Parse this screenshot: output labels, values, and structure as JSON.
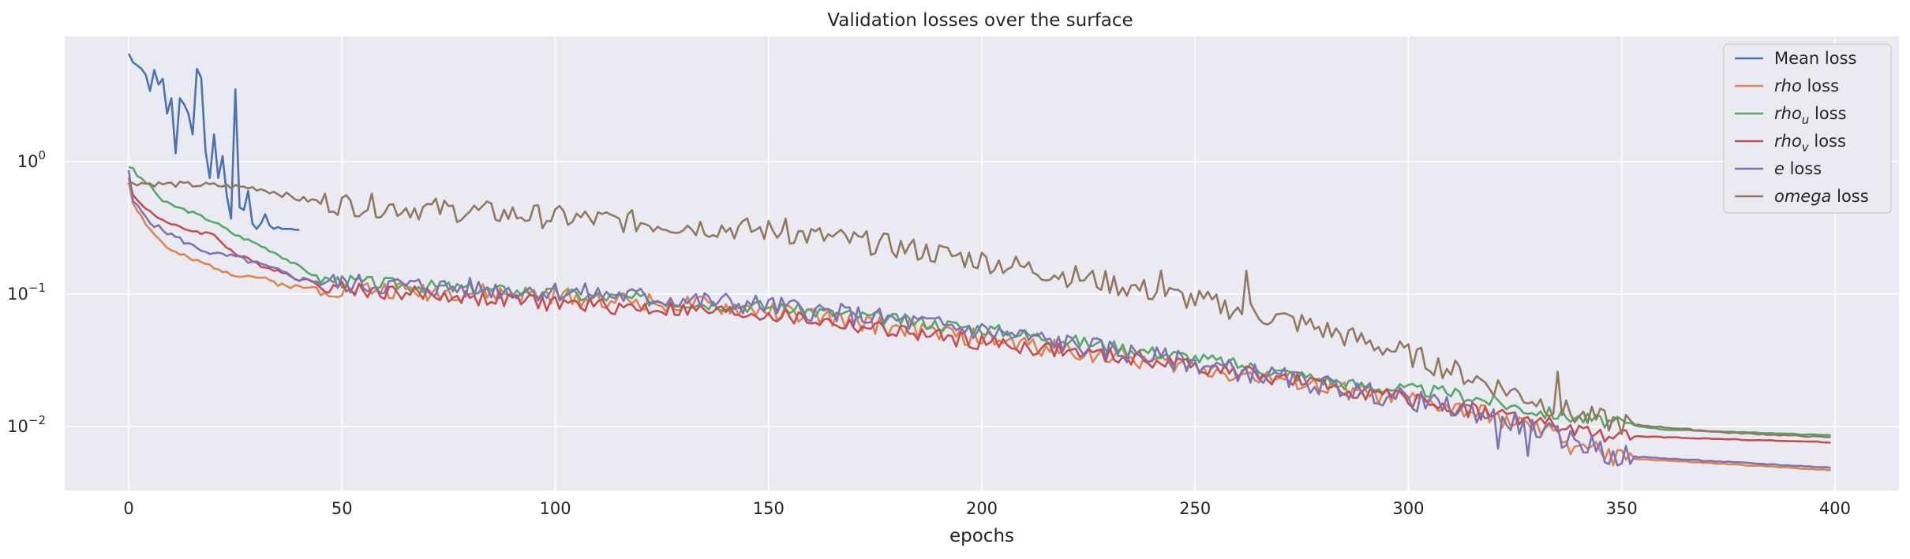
{
  "chart_data": {
    "type": "line",
    "title": "Validation losses over the surface",
    "xlabel": "epochs",
    "ylabel": "",
    "xlim": [
      -15,
      415
    ],
    "ylim": [
      0.0033,
      8.8
    ],
    "yscale": "log",
    "grid": true,
    "legend_position": "top-right",
    "x_ticks": [
      0,
      50,
      100,
      150,
      200,
      250,
      300,
      350,
      400
    ],
    "x_tick_labels": [
      "0",
      "50",
      "100",
      "150",
      "200",
      "250",
      "300",
      "350",
      "400"
    ],
    "y_ticks": [
      {
        "value": 1,
        "base": "10",
        "exp": "0"
      },
      {
        "value": 0.1,
        "base": "10",
        "exp": "−1"
      },
      {
        "value": 0.01,
        "base": "10",
        "exp": "−2"
      }
    ],
    "series": [
      {
        "name": "Mean loss",
        "legend_var": "",
        "legend_sub": "",
        "legend_rest": "Mean loss",
        "color": "#4c72b0",
        "x": [
          0,
          1,
          2,
          3,
          4,
          5,
          6,
          7,
          8,
          9,
          10,
          11,
          12,
          13,
          14,
          15,
          16,
          17,
          18,
          19,
          20,
          21,
          22,
          23,
          24,
          25,
          26,
          27,
          28,
          29,
          30,
          31,
          32,
          33,
          34,
          35,
          36,
          37,
          38,
          39,
          40
        ],
        "y": [
          6.5,
          5.6,
          5.3,
          5.0,
          4.5,
          3.4,
          4.9,
          3.8,
          4.2,
          2.3,
          3.0,
          1.15,
          3.0,
          2.7,
          2.3,
          1.6,
          5.0,
          4.3,
          1.2,
          0.75,
          1.6,
          0.75,
          1.1,
          0.55,
          0.37,
          3.5,
          0.45,
          0.43,
          0.6,
          0.34,
          0.31,
          0.34,
          0.4,
          0.33,
          0.31,
          0.32,
          0.31,
          0.31,
          0.31,
          0.305,
          0.305
        ]
      },
      {
        "name": "rho loss",
        "legend_var": "rho",
        "legend_sub": "",
        "legend_rest": " loss",
        "color": "#dd8452",
        "anchors": [
          [
            0,
            0.7
          ],
          [
            1,
            0.5
          ],
          [
            3,
            0.38
          ],
          [
            6,
            0.28
          ],
          [
            10,
            0.21
          ],
          [
            15,
            0.18
          ],
          [
            20,
            0.16
          ],
          [
            25,
            0.14
          ],
          [
            30,
            0.135
          ],
          [
            35,
            0.12
          ],
          [
            40,
            0.112
          ],
          [
            50,
            0.11
          ],
          [
            100,
            0.097
          ],
          [
            150,
            0.075
          ],
          [
            200,
            0.046
          ],
          [
            250,
            0.028
          ],
          [
            300,
            0.016
          ],
          [
            320,
            0.012
          ],
          [
            335,
            0.0085
          ],
          [
            345,
            0.0065
          ],
          [
            346,
            0.006
          ],
          [
            350,
            0.0058
          ],
          [
            375,
            0.0052
          ],
          [
            399,
            0.0047
          ]
        ],
        "noise": 0.07,
        "spikes": [
          [
            335,
            0.0095
          ],
          [
            338,
            0.0062
          ]
        ],
        "seed": 2
      },
      {
        "name": "rho_u loss",
        "legend_var": "rho",
        "legend_sub": "u",
        "legend_rest": " loss",
        "color": "#55a868",
        "anchors": [
          [
            0,
            0.92
          ],
          [
            1,
            0.87
          ],
          [
            2,
            0.78
          ],
          [
            4,
            0.7
          ],
          [
            6,
            0.6
          ],
          [
            8,
            0.5
          ],
          [
            10,
            0.47
          ],
          [
            15,
            0.41
          ],
          [
            20,
            0.35
          ],
          [
            25,
            0.28
          ],
          [
            30,
            0.24
          ],
          [
            35,
            0.2
          ],
          [
            40,
            0.16
          ],
          [
            45,
            0.13
          ],
          [
            50,
            0.125
          ],
          [
            100,
            0.1
          ],
          [
            150,
            0.08
          ],
          [
            200,
            0.055
          ],
          [
            250,
            0.033
          ],
          [
            290,
            0.02
          ],
          [
            310,
            0.018
          ],
          [
            330,
            0.013
          ],
          [
            345,
            0.011
          ],
          [
            360,
            0.0095
          ],
          [
            399,
            0.0086
          ]
        ],
        "noise": 0.05,
        "spikes": [],
        "seed": 3
      },
      {
        "name": "rho_v loss",
        "legend_var": "rho",
        "legend_sub": "v",
        "legend_rest": " loss",
        "color": "#c44e52",
        "anchors": [
          [
            0,
            0.78
          ],
          [
            1,
            0.55
          ],
          [
            3,
            0.47
          ],
          [
            6,
            0.4
          ],
          [
            10,
            0.33
          ],
          [
            15,
            0.3
          ],
          [
            20,
            0.28
          ],
          [
            25,
            0.2
          ],
          [
            30,
            0.17
          ],
          [
            35,
            0.15
          ],
          [
            40,
            0.13
          ],
          [
            50,
            0.11
          ],
          [
            100,
            0.085
          ],
          [
            150,
            0.07
          ],
          [
            200,
            0.043
          ],
          [
            250,
            0.029
          ],
          [
            300,
            0.016
          ],
          [
            330,
            0.011
          ],
          [
            340,
            0.009
          ],
          [
            350,
            0.0085
          ],
          [
            399,
            0.0076
          ]
        ],
        "noise": 0.06,
        "spikes": [],
        "seed": 4
      },
      {
        "name": "e loss",
        "legend_var": "e",
        "legend_sub": "",
        "legend_rest": " loss",
        "color": "#8172b3",
        "anchors": [
          [
            0,
            0.83
          ],
          [
            1,
            0.5
          ],
          [
            3,
            0.42
          ],
          [
            6,
            0.33
          ],
          [
            10,
            0.28
          ],
          [
            15,
            0.23
          ],
          [
            20,
            0.2
          ],
          [
            25,
            0.19
          ],
          [
            30,
            0.17
          ],
          [
            35,
            0.15
          ],
          [
            40,
            0.13
          ],
          [
            50,
            0.12
          ],
          [
            100,
            0.105
          ],
          [
            150,
            0.082
          ],
          [
            200,
            0.053
          ],
          [
            250,
            0.03
          ],
          [
            300,
            0.016
          ],
          [
            320,
            0.012
          ],
          [
            335,
            0.0085
          ],
          [
            345,
            0.0066
          ],
          [
            346,
            0.006
          ],
          [
            350,
            0.006
          ],
          [
            375,
            0.0054
          ],
          [
            399,
            0.0049
          ]
        ],
        "noise": 0.08,
        "spikes": [
          [
            321,
            0.0068
          ],
          [
            328,
            0.006
          ],
          [
            343,
            0.0085
          ]
        ],
        "seed": 5
      },
      {
        "name": "omega loss",
        "legend_var": "omega",
        "legend_sub": "",
        "legend_rest": " loss",
        "color": "#937860",
        "anchors": [
          [
            0,
            0.7
          ],
          [
            5,
            0.68
          ],
          [
            20,
            0.66
          ],
          [
            30,
            0.63
          ],
          [
            35,
            0.58
          ],
          [
            40,
            0.52
          ],
          [
            50,
            0.48
          ],
          [
            75,
            0.43
          ],
          [
            100,
            0.38
          ],
          [
            125,
            0.34
          ],
          [
            150,
            0.3
          ],
          [
            175,
            0.24
          ],
          [
            200,
            0.18
          ],
          [
            225,
            0.13
          ],
          [
            250,
            0.09
          ],
          [
            275,
            0.06
          ],
          [
            300,
            0.035
          ],
          [
            325,
            0.018
          ],
          [
            340,
            0.012
          ],
          [
            350,
            0.0105
          ],
          [
            375,
            0.009
          ],
          [
            399,
            0.0083
          ]
        ],
        "noise": 0.09,
        "spikes": [
          [
            154,
            0.37
          ],
          [
            242,
            0.15
          ],
          [
            262,
            0.15
          ],
          [
            335,
            0.026
          ]
        ],
        "seed": 6
      }
    ]
  }
}
